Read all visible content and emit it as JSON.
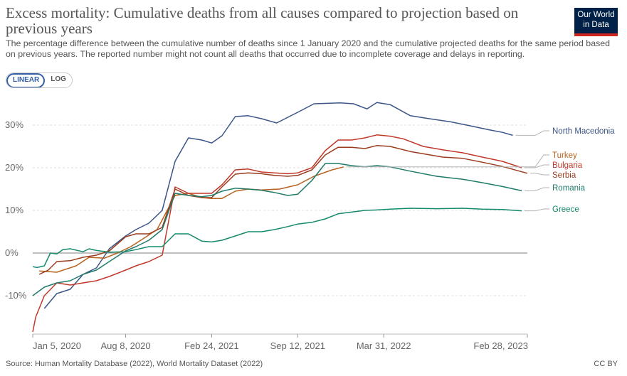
{
  "header": {
    "title": "Excess mortality: Cumulative deaths from all causes compared to projection based on previous years",
    "subtitle": "The percentage difference between the cumulative number of deaths since 1 January 2020 and the cumulative projected deaths for the same period based on previous years. The reported number might not count all deaths that occurred due to incomplete coverage and delays in reporting.",
    "logo_line1": "Our World",
    "logo_line2": "in Data"
  },
  "controls": {
    "linear_label": "LINEAR",
    "log_label": "LOG",
    "selected": "LINEAR"
  },
  "footer": {
    "source": "Source: Human Mortality Database (2022), World Mortality Dataset (2022)",
    "license": "CC BY"
  },
  "chart_data": {
    "type": "line",
    "title": "Excess mortality: Cumulative deaths from all causes compared to projection based on previous years",
    "xlabel": "",
    "ylabel": "",
    "x_tick_labels": [
      "Jan 5, 2020",
      "Aug 8, 2020",
      "Feb 24, 2021",
      "Sep 12, 2021",
      "Mar 31, 2022",
      "Feb 28, 2023"
    ],
    "x_tick_dates": [
      "2020-01-05",
      "2020-08-08",
      "2021-02-24",
      "2021-09-12",
      "2022-03-31",
      "2023-02-28"
    ],
    "x_range": [
      "2020-01-05",
      "2023-02-28"
    ],
    "y_ticks": [
      -10,
      0,
      10,
      20,
      30
    ],
    "y_tick_labels": [
      "-10%",
      "0%",
      "10%",
      "20%",
      "30%"
    ],
    "ylim": [
      -19,
      36
    ],
    "grid": "horizontal dashed",
    "legend": "right, end-of-line labels",
    "series": [
      {
        "name": "North Macedonia",
        "color": "#3c5587",
        "points": [
          [
            "2020-02-01",
            -13
          ],
          [
            "2020-03-01",
            -9.5
          ],
          [
            "2020-04-01",
            -8.5
          ],
          [
            "2020-05-01",
            -5
          ],
          [
            "2020-06-01",
            -3.5
          ],
          [
            "2020-07-01",
            1
          ],
          [
            "2020-08-08",
            4
          ],
          [
            "2020-09-01",
            5.5
          ],
          [
            "2020-10-01",
            7
          ],
          [
            "2020-11-01",
            10
          ],
          [
            "2020-12-01",
            21.5
          ],
          [
            "2021-01-01",
            27
          ],
          [
            "2021-02-01",
            26.5
          ],
          [
            "2021-02-24",
            25.8
          ],
          [
            "2021-03-20",
            27.5
          ],
          [
            "2021-04-20",
            32
          ],
          [
            "2021-05-20",
            32.2
          ],
          [
            "2021-06-20",
            31.5
          ],
          [
            "2021-07-25",
            30.5
          ],
          [
            "2021-09-12",
            33
          ],
          [
            "2021-10-20",
            35
          ],
          [
            "2021-12-20",
            35.2
          ],
          [
            "2022-01-20",
            35
          ],
          [
            "2022-02-20",
            33.8
          ],
          [
            "2022-03-15",
            35.3
          ],
          [
            "2022-04-15",
            34.8
          ],
          [
            "2022-06-01",
            32.2
          ],
          [
            "2022-07-15",
            31.5
          ],
          [
            "2022-09-01",
            30.8
          ],
          [
            "2022-10-15",
            29.9
          ],
          [
            "2022-12-01",
            28.9
          ],
          [
            "2023-01-01",
            28.3
          ],
          [
            "2023-01-25",
            27.6
          ]
        ]
      },
      {
        "name": "Turkey",
        "color": "#b8621f",
        "points": [
          [
            "2020-01-20",
            -4.2
          ],
          [
            "2020-03-01",
            -4.5
          ],
          [
            "2020-04-15",
            -3
          ],
          [
            "2020-05-15",
            -1
          ],
          [
            "2020-06-20",
            -1.2
          ],
          [
            "2020-07-20",
            0
          ],
          [
            "2020-08-20",
            1.5
          ],
          [
            "2020-09-20",
            3.5
          ],
          [
            "2020-10-20",
            5.5
          ],
          [
            "2020-12-01",
            13.5
          ],
          [
            "2021-01-01",
            14
          ],
          [
            "2021-02-01",
            13
          ],
          [
            "2021-02-24",
            12.8
          ],
          [
            "2021-03-20",
            12.8
          ],
          [
            "2021-04-20",
            14.5
          ],
          [
            "2021-05-20",
            15
          ],
          [
            "2021-06-20",
            14.8
          ],
          [
            "2021-08-01",
            15
          ],
          [
            "2021-09-12",
            16
          ],
          [
            "2021-10-20",
            18
          ],
          [
            "2021-12-01",
            19.5
          ],
          [
            "2021-12-28",
            20.2
          ]
        ]
      },
      {
        "name": "Bulgaria",
        "color": "#c0392b",
        "points": [
          [
            "2020-01-05",
            -18.5
          ],
          [
            "2020-01-12",
            -15
          ],
          [
            "2020-02-01",
            -10
          ],
          [
            "2020-03-01",
            -7
          ],
          [
            "2020-04-01",
            -7.5
          ],
          [
            "2020-05-01",
            -7
          ],
          [
            "2020-06-01",
            -6.5
          ],
          [
            "2020-07-01",
            -5.5
          ],
          [
            "2020-08-08",
            -4
          ],
          [
            "2020-09-01",
            -3
          ],
          [
            "2020-10-01",
            -2
          ],
          [
            "2020-11-01",
            -0.5
          ],
          [
            "2020-12-01",
            15.5
          ],
          [
            "2021-01-01",
            14
          ],
          [
            "2021-02-01",
            14
          ],
          [
            "2021-02-24",
            14
          ],
          [
            "2021-03-20",
            16
          ],
          [
            "2021-04-20",
            19.5
          ],
          [
            "2021-05-20",
            19.7
          ],
          [
            "2021-06-20",
            19
          ],
          [
            "2021-07-20",
            18.8
          ],
          [
            "2021-08-20",
            18.6
          ],
          [
            "2021-09-12",
            18.8
          ],
          [
            "2021-10-15",
            20
          ],
          [
            "2021-11-15",
            24
          ],
          [
            "2021-12-15",
            26.5
          ],
          [
            "2022-01-15",
            26.5
          ],
          [
            "2022-02-15",
            27
          ],
          [
            "2022-03-15",
            27.7
          ],
          [
            "2022-04-15",
            27.4
          ],
          [
            "2022-05-15",
            26.8
          ],
          [
            "2022-07-01",
            25
          ],
          [
            "2022-08-15",
            24.2
          ],
          [
            "2022-10-01",
            23.5
          ],
          [
            "2022-11-15",
            22.5
          ],
          [
            "2023-01-01",
            21.5
          ],
          [
            "2023-02-15",
            20
          ]
        ]
      },
      {
        "name": "Serbia",
        "color": "#9a3b1d",
        "points": [
          [
            "2020-01-20",
            -5
          ],
          [
            "2020-02-10",
            -4
          ],
          [
            "2020-03-01",
            -2
          ],
          [
            "2020-04-01",
            -1.8
          ],
          [
            "2020-05-01",
            -1
          ],
          [
            "2020-06-01",
            -0.5
          ],
          [
            "2020-07-01",
            0.5
          ],
          [
            "2020-08-08",
            3.8
          ],
          [
            "2020-09-01",
            4.5
          ],
          [
            "2020-10-01",
            4.5
          ],
          [
            "2020-11-01",
            6
          ],
          [
            "2020-12-01",
            15
          ],
          [
            "2021-01-01",
            13.5
          ],
          [
            "2021-02-01",
            13
          ],
          [
            "2021-02-24",
            13
          ],
          [
            "2021-03-20",
            15.5
          ],
          [
            "2021-04-20",
            18.5
          ],
          [
            "2021-05-20",
            18.8
          ],
          [
            "2021-06-20",
            18.6
          ],
          [
            "2021-07-20",
            18.2
          ],
          [
            "2021-08-20",
            18
          ],
          [
            "2021-09-12",
            18.2
          ],
          [
            "2021-10-15",
            19.5
          ],
          [
            "2021-11-15",
            23
          ],
          [
            "2021-12-15",
            24.8
          ],
          [
            "2022-01-15",
            24.8
          ],
          [
            "2022-02-15",
            24.5
          ],
          [
            "2022-03-15",
            25.2
          ],
          [
            "2022-04-15",
            25
          ],
          [
            "2022-06-01",
            23.8
          ],
          [
            "2022-08-15",
            22.5
          ],
          [
            "2022-10-01",
            22.2
          ],
          [
            "2022-11-15",
            21.3
          ],
          [
            "2023-01-01",
            20.3
          ],
          [
            "2023-02-28",
            18.7
          ]
        ]
      },
      {
        "name": "Romania",
        "color": "#1f7a6a",
        "points": [
          [
            "2020-01-05",
            -10
          ],
          [
            "2020-02-01",
            -8
          ],
          [
            "2020-03-01",
            -7
          ],
          [
            "2020-04-01",
            -6.5
          ],
          [
            "2020-05-01",
            -5
          ],
          [
            "2020-06-01",
            -4
          ],
          [
            "2020-07-01",
            -2
          ],
          [
            "2020-08-08",
            0.5
          ],
          [
            "2020-09-01",
            1.5
          ],
          [
            "2020-10-01",
            3
          ],
          [
            "2020-11-01",
            5.5
          ],
          [
            "2020-12-01",
            14
          ],
          [
            "2021-01-01",
            13.5
          ],
          [
            "2021-02-01",
            13.2
          ],
          [
            "2021-02-24",
            13.5
          ],
          [
            "2021-03-20",
            14.5
          ],
          [
            "2021-04-20",
            15.2
          ],
          [
            "2021-05-20",
            15
          ],
          [
            "2021-06-20",
            14.7
          ],
          [
            "2021-07-20",
            14.2
          ],
          [
            "2021-08-20",
            13.5
          ],
          [
            "2021-09-12",
            13.8
          ],
          [
            "2021-10-15",
            17
          ],
          [
            "2021-11-15",
            21
          ],
          [
            "2021-12-15",
            21
          ],
          [
            "2022-01-15",
            20.5
          ],
          [
            "2022-02-15",
            20.2
          ],
          [
            "2022-03-15",
            20.5
          ],
          [
            "2022-04-15",
            20.2
          ],
          [
            "2022-06-01",
            19.2
          ],
          [
            "2022-08-01",
            18
          ],
          [
            "2022-10-01",
            17.3
          ],
          [
            "2022-11-15",
            16.5
          ],
          [
            "2023-01-01",
            15.6
          ],
          [
            "2023-02-15",
            14.6
          ]
        ]
      },
      {
        "name": "Greece",
        "color": "#138a6b",
        "points": [
          [
            "2020-01-05",
            -3.2
          ],
          [
            "2020-01-15",
            -3.4
          ],
          [
            "2020-02-01",
            -3
          ],
          [
            "2020-02-15",
            0
          ],
          [
            "2020-03-01",
            -0.2
          ],
          [
            "2020-03-15",
            0.8
          ],
          [
            "2020-04-01",
            1
          ],
          [
            "2020-05-01",
            0.3
          ],
          [
            "2020-05-15",
            1
          ],
          [
            "2020-06-01",
            0.6
          ],
          [
            "2020-07-01",
            0.2
          ],
          [
            "2020-08-08",
            0.3
          ],
          [
            "2020-09-01",
            0.8
          ],
          [
            "2020-10-01",
            1.5
          ],
          [
            "2020-11-01",
            1.5
          ],
          [
            "2020-12-01",
            4.5
          ],
          [
            "2021-01-01",
            4.5
          ],
          [
            "2021-02-01",
            2.8
          ],
          [
            "2021-02-24",
            2.6
          ],
          [
            "2021-03-20",
            3
          ],
          [
            "2021-04-20",
            4
          ],
          [
            "2021-05-20",
            5
          ],
          [
            "2021-06-20",
            5
          ],
          [
            "2021-07-20",
            5.5
          ],
          [
            "2021-08-20",
            6.2
          ],
          [
            "2021-09-12",
            6.8
          ],
          [
            "2021-10-15",
            7.2
          ],
          [
            "2021-11-15",
            8
          ],
          [
            "2021-12-15",
            9.2
          ],
          [
            "2022-01-15",
            9.6
          ],
          [
            "2022-02-15",
            10
          ],
          [
            "2022-03-15",
            10.1
          ],
          [
            "2022-04-15",
            10.3
          ],
          [
            "2022-06-01",
            10.5
          ],
          [
            "2022-08-01",
            10.4
          ],
          [
            "2022-10-01",
            10.5
          ],
          [
            "2022-11-15",
            10.3
          ],
          [
            "2023-01-01",
            10.2
          ],
          [
            "2023-02-15",
            9.9
          ]
        ]
      }
    ]
  }
}
